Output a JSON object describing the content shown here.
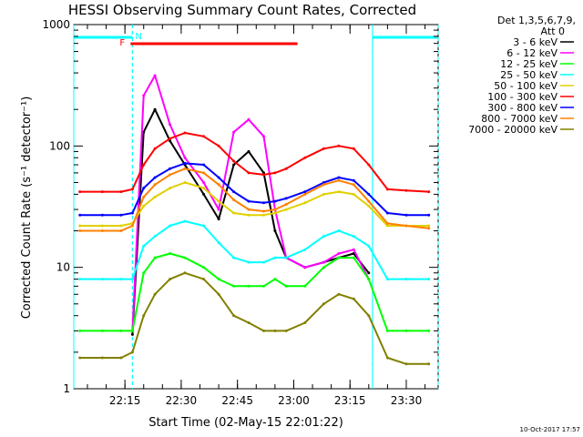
{
  "chart_data": {
    "type": "line",
    "title": "HESSI Observing Summary Count Rates, Corrected",
    "xlabel": "Start Time (02-May-15 22:01:22)",
    "ylabel": "Corrected Count Rate (s⁻¹ detector⁻¹)",
    "yscale": "log",
    "ylim": [
      1,
      1000
    ],
    "y_ticks": [
      1,
      10,
      100,
      1000
    ],
    "y_tick_labels": [
      "1",
      "10",
      "100",
      "1000"
    ],
    "xlim": [
      "22:01:22",
      "23:38:30"
    ],
    "x_ticks": [
      "22:15",
      "22:30",
      "22:45",
      "23:00",
      "23:15",
      "23:30"
    ],
    "timestamp": "10-Oct-2017 17:57",
    "legend": {
      "placement": "right",
      "header": [
        "Det 1,3,5,6,7,9,",
        "Att 0"
      ]
    },
    "annotations": {
      "flag_F": {
        "label": "F",
        "start": "22:16:30",
        "end": "23:01:00",
        "color": "#ff0000"
      },
      "flag_N": {
        "label": "N",
        "intervals": [
          [
            "22:01:22",
            "22:17:00"
          ],
          [
            "23:21:00",
            "23:38:30"
          ]
        ],
        "color": "#00ffff"
      },
      "night_boundaries": [
        "22:17:00",
        "23:21:00"
      ]
    },
    "x": [
      "22:03",
      "22:09",
      "22:14",
      "22:17",
      "22:20",
      "22:23",
      "22:27",
      "22:31",
      "22:36",
      "22:40",
      "22:44",
      "22:48",
      "22:52",
      "22:55",
      "22:58",
      "23:03",
      "23:08",
      "23:12",
      "23:16",
      "23:20",
      "23:25",
      "23:30",
      "23:36"
    ],
    "series": [
      {
        "name": "3 - 6 keV",
        "color": "#000000",
        "values": [
          null,
          null,
          null,
          2.8,
          130,
          200,
          110,
          70,
          40,
          25,
          70,
          90,
          60,
          20,
          12,
          10,
          11,
          12,
          13,
          9,
          null,
          null,
          null
        ]
      },
      {
        "name": "6 - 12 keV",
        "color": "#ff00ff",
        "values": [
          null,
          null,
          null,
          3,
          260,
          380,
          150,
          80,
          50,
          30,
          130,
          165,
          120,
          30,
          12,
          10,
          11,
          13,
          14,
          8,
          null,
          null,
          null
        ]
      },
      {
        "name": "12 - 25 keV",
        "color": "#00ff00",
        "values": [
          3,
          3,
          3,
          3,
          9,
          12,
          13,
          12,
          10,
          8,
          7,
          7,
          7,
          8,
          7,
          7,
          10,
          12,
          12,
          8,
          3,
          3,
          3
        ]
      },
      {
        "name": "25 - 50 keV",
        "color": "#00ffff",
        "values": [
          8,
          8,
          8,
          8,
          15,
          18,
          22,
          24,
          22,
          16,
          12,
          11,
          11,
          12,
          12,
          14,
          18,
          20,
          18,
          15,
          8,
          8,
          8
        ]
      },
      {
        "name": "50 - 100 keV",
        "color": "#e0d000",
        "values": [
          22,
          22,
          22,
          23,
          32,
          38,
          45,
          50,
          45,
          35,
          28,
          27,
          27,
          28,
          30,
          34,
          40,
          42,
          40,
          32,
          22,
          22,
          22
        ]
      },
      {
        "name": "100 - 300 keV",
        "color": "#ff0000",
        "values": [
          42,
          42,
          42,
          44,
          70,
          95,
          115,
          128,
          120,
          100,
          75,
          60,
          58,
          60,
          65,
          80,
          95,
          100,
          95,
          70,
          44,
          43,
          42
        ]
      },
      {
        "name": "300 - 800 keV",
        "color": "#0000ff",
        "values": [
          27,
          27,
          27,
          28,
          45,
          55,
          65,
          72,
          70,
          55,
          42,
          35,
          34,
          35,
          37,
          42,
          50,
          55,
          52,
          40,
          28,
          27,
          27
        ]
      },
      {
        "name": "800 - 7000 keV",
        "color": "#ff8000",
        "values": [
          20,
          20,
          20,
          22,
          38,
          48,
          58,
          65,
          60,
          48,
          36,
          30,
          29,
          30,
          33,
          40,
          48,
          52,
          48,
          35,
          23,
          22,
          21
        ]
      },
      {
        "name": "7000 - 20000 keV",
        "color": "#808000",
        "values": [
          1.8,
          1.8,
          1.8,
          2,
          4,
          6,
          8,
          9,
          8,
          6,
          4,
          3.5,
          3,
          3,
          3,
          3.5,
          5,
          6,
          5.5,
          4,
          1.8,
          1.6,
          1.6
        ]
      }
    ]
  }
}
